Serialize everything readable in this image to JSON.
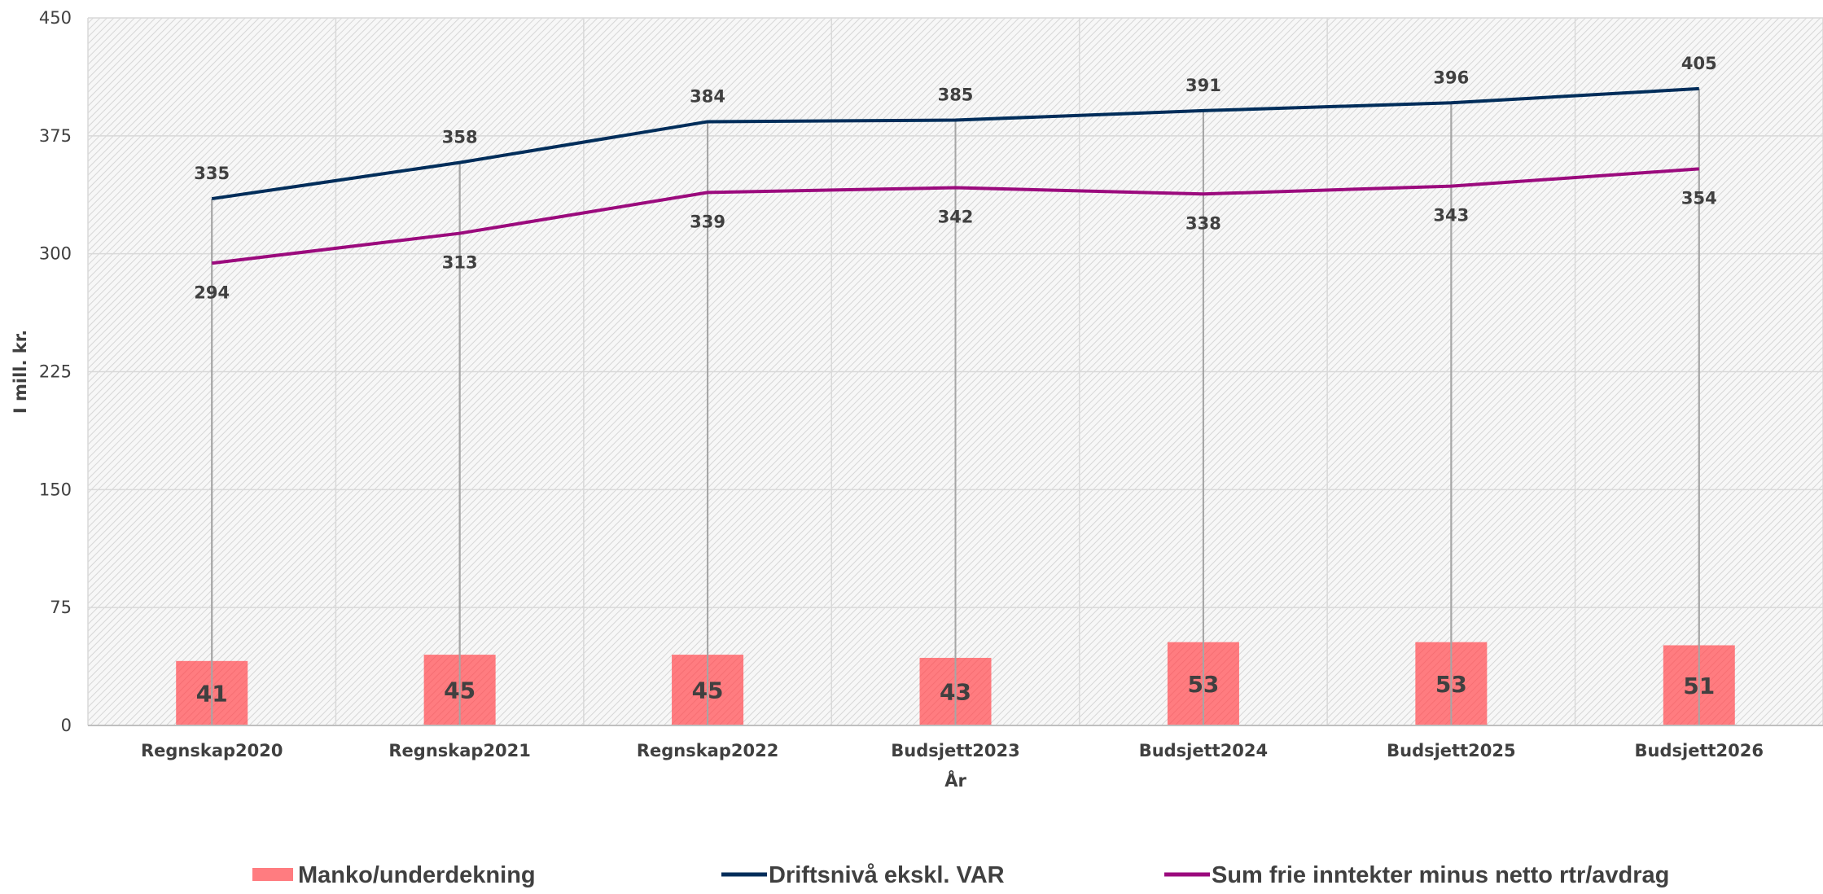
{
  "chart_data": {
    "type": "bar",
    "categories": [
      "Regnskap2020",
      "Regnskap2021",
      "Regnskap2022",
      "Budsjett2023",
      "Budsjett2024",
      "Budsjett2025",
      "Budsjett2026"
    ],
    "series": [
      {
        "name": "Manko/underdekning",
        "type": "bar",
        "color": "#ff7c80",
        "values": [
          41,
          45,
          45,
          43,
          53,
          53,
          51
        ]
      },
      {
        "name": "Driftsnivå ekskl. VAR",
        "type": "line",
        "color": "#002d5a",
        "values": [
          335,
          358,
          384,
          385,
          391,
          396,
          405
        ]
      },
      {
        "name": "Sum frie inntekter minus netto rtr/avdrag",
        "type": "line",
        "color": "#9b0a7d",
        "values": [
          294,
          313,
          339,
          342,
          338,
          343,
          354
        ]
      }
    ],
    "xlabel": "År",
    "ylabel": "I mill. kr.",
    "ylim": [
      0,
      450
    ],
    "yticks": [
      0,
      75,
      150,
      225,
      300,
      375,
      450
    ],
    "grid": true,
    "legend_position": "bottom",
    "drop_lines": true
  }
}
